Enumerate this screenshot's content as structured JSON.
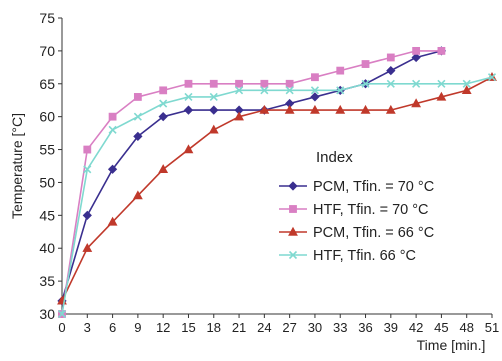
{
  "chart_data": {
    "type": "line",
    "title": "",
    "xlabel": "Time [min.]",
    "ylabel": "Temperature [°C]",
    "xlim": [
      0,
      51
    ],
    "ylim": [
      30,
      75
    ],
    "xticks": [
      0,
      3,
      6,
      9,
      12,
      15,
      18,
      21,
      24,
      27,
      30,
      33,
      36,
      39,
      42,
      45,
      48,
      51
    ],
    "yticks": [
      30,
      35,
      40,
      45,
      50,
      55,
      60,
      65,
      70,
      75
    ],
    "grid": false,
    "legend": {
      "title": "Index",
      "placement": "center-right"
    },
    "series": [
      {
        "name": "PCM, Tfin. = 70 °C",
        "color": "#3a2f8f",
        "marker": "diamond",
        "x": [
          0,
          3,
          6,
          9,
          12,
          15,
          18,
          21,
          24,
          27,
          30,
          33,
          36,
          39,
          42,
          45
        ],
        "y": [
          32,
          45,
          52,
          57,
          60,
          61,
          61,
          61,
          61,
          62,
          63,
          64,
          65,
          67,
          69,
          70
        ]
      },
      {
        "name": "HTF, Tfin. = 70 °C",
        "color": "#d97fc3",
        "marker": "square",
        "x": [
          0,
          3,
          6,
          9,
          12,
          15,
          18,
          21,
          24,
          27,
          30,
          33,
          36,
          39,
          42,
          45
        ],
        "y": [
          30,
          55,
          60,
          63,
          64,
          65,
          65,
          65,
          65,
          65,
          66,
          67,
          68,
          69,
          70,
          70
        ]
      },
      {
        "name": "PCM, Tfin. = 66 °C",
        "color": "#c0392b",
        "marker": "triangle",
        "x": [
          0,
          3,
          6,
          9,
          12,
          15,
          18,
          21,
          24,
          27,
          30,
          33,
          36,
          39,
          42,
          45,
          48,
          51
        ],
        "y": [
          32,
          40,
          44,
          48,
          52,
          55,
          58,
          60,
          61,
          61,
          61,
          61,
          61,
          61,
          62,
          63,
          64,
          66
        ]
      },
      {
        "name": "HTF, Tfin. 66 °C",
        "color": "#7fd9d0",
        "marker": "x",
        "x": [
          0,
          3,
          6,
          9,
          12,
          15,
          18,
          21,
          24,
          27,
          30,
          33,
          36,
          39,
          42,
          45,
          48,
          51
        ],
        "y": [
          30,
          52,
          58,
          60,
          62,
          63,
          63,
          64,
          64,
          64,
          64,
          64,
          65,
          65,
          65,
          65,
          65,
          66
        ]
      }
    ]
  }
}
